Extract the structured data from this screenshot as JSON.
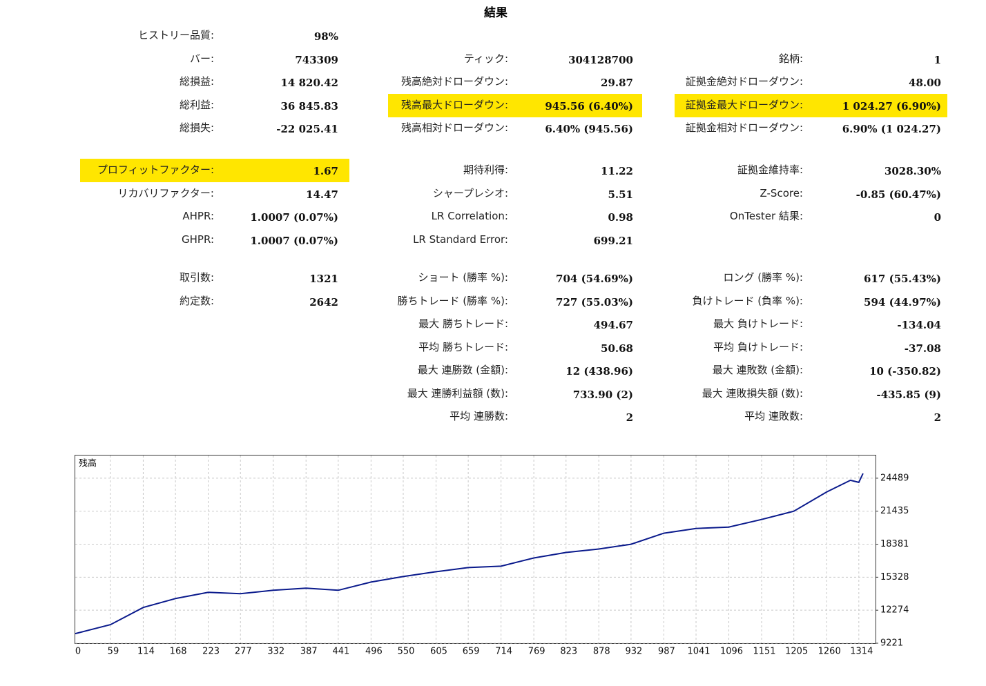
{
  "title": "結果",
  "groups": [
    {
      "rows": [
        [
          {
            "label": "ヒストリー品質:",
            "value": "98%"
          },
          null,
          null
        ],
        [
          {
            "label": "バー:",
            "value": "743309"
          },
          {
            "label": "ティック:",
            "value": "304128700"
          },
          {
            "label": "銘柄:",
            "value": "1"
          }
        ],
        [
          {
            "label": "総損益:",
            "value": "14 820.42"
          },
          {
            "label": "残高絶対ドローダウン:",
            "value": "29.87"
          },
          {
            "label": "証拠金絶対ドローダウン:",
            "value": "48.00"
          }
        ],
        [
          {
            "label": "総利益:",
            "value": "36 845.83"
          },
          {
            "label": "残高最大ドローダウン:",
            "value": "945.56 (6.40%)",
            "highlighted": true
          },
          {
            "label": "証拠金最大ドローダウン:",
            "value": "1 024.27 (6.90%)",
            "highlighted": true
          }
        ],
        [
          {
            "label": "総損失:",
            "value": "-22 025.41"
          },
          {
            "label": "残高相対ドローダウン:",
            "value": "6.40% (945.56)"
          },
          {
            "label": "証拠金相対ドローダウン:",
            "value": "6.90% (1 024.27)"
          }
        ]
      ]
    },
    {
      "rows": [
        [
          {
            "label": "プロフィットファクター:",
            "value": "1.67",
            "highlighted": true
          },
          {
            "label": "期待利得:",
            "value": "11.22"
          },
          {
            "label": "証拠金維持率:",
            "value": "3028.30%"
          }
        ],
        [
          {
            "label": "リカバリファクター:",
            "value": "14.47"
          },
          {
            "label": "シャープレシオ:",
            "value": "5.51"
          },
          {
            "label": "Z-Score:",
            "value": "-0.85 (60.47%)"
          }
        ],
        [
          {
            "label": "AHPR:",
            "value": "1.0007 (0.07%)"
          },
          {
            "label": "LR Correlation:",
            "value": "0.98"
          },
          {
            "label": "OnTester 結果:",
            "value": "0"
          }
        ],
        [
          {
            "label": "GHPR:",
            "value": "1.0007 (0.07%)"
          },
          {
            "label": "LR Standard Error:",
            "value": "699.21"
          },
          null
        ]
      ]
    },
    {
      "rows": [
        [
          {
            "label": "取引数:",
            "value": "1321"
          },
          {
            "label": "ショート (勝率 %):",
            "value": "704 (54.69%)"
          },
          {
            "label": "ロング (勝率 %):",
            "value": "617 (55.43%)"
          }
        ],
        [
          {
            "label": "約定数:",
            "value": "2642"
          },
          {
            "label": "勝ちトレード (勝率 %):",
            "value": "727 (55.03%)"
          },
          {
            "label": "負けトレード (負率 %):",
            "value": "594 (44.97%)"
          }
        ],
        [
          null,
          {
            "label": "最大 勝ちトレード:",
            "value": "494.67"
          },
          {
            "label": "最大 負けトレード:",
            "value": "-134.04"
          }
        ],
        [
          null,
          {
            "label": "平均 勝ちトレード:",
            "value": "50.68"
          },
          {
            "label": "平均 負けトレード:",
            "value": "-37.08"
          }
        ],
        [
          null,
          {
            "label": "最大 連勝数 (金額):",
            "value": "12 (438.96)"
          },
          {
            "label": "最大 連敗数 (金額):",
            "value": "10 (-350.82)"
          }
        ],
        [
          null,
          {
            "label": "最大 連勝利益額 (数):",
            "value": "733.90 (2)"
          },
          {
            "label": "最大 連敗損失額 (数):",
            "value": "-435.85 (9)"
          }
        ],
        [
          null,
          {
            "label": "平均 連勝数:",
            "value": "2"
          },
          {
            "label": "平均 連敗数:",
            "value": "2"
          }
        ]
      ]
    }
  ],
  "chart_data": {
    "type": "line",
    "title": "残高",
    "color": "#0a1a8c",
    "grid": true,
    "x": [
      0,
      59,
      114,
      168,
      223,
      277,
      332,
      387,
      441,
      496,
      550,
      605,
      659,
      714,
      769,
      823,
      878,
      932,
      987,
      1041,
      1096,
      1151,
      1205,
      1260,
      1300,
      1314,
      1321
    ],
    "values": [
      10111,
      10938,
      12528,
      13355,
      13927,
      13800,
      14118,
      14309,
      14118,
      14881,
      15390,
      15836,
      16217,
      16344,
      17108,
      17616,
      17934,
      18379,
      19397,
      19842,
      19970,
      20670,
      21433,
      23213,
      24294,
      24103,
      24930
    ],
    "xlim": [
      0,
      1342
    ],
    "ylim": [
      9221,
      26589
    ],
    "xticks": [
      0,
      59,
      114,
      168,
      223,
      277,
      332,
      387,
      441,
      496,
      550,
      605,
      659,
      714,
      769,
      823,
      878,
      932,
      987,
      1041,
      1096,
      1151,
      1205,
      1260,
      1314
    ],
    "yticks": [
      9221,
      12274,
      15328,
      18381,
      21435,
      24489
    ]
  }
}
